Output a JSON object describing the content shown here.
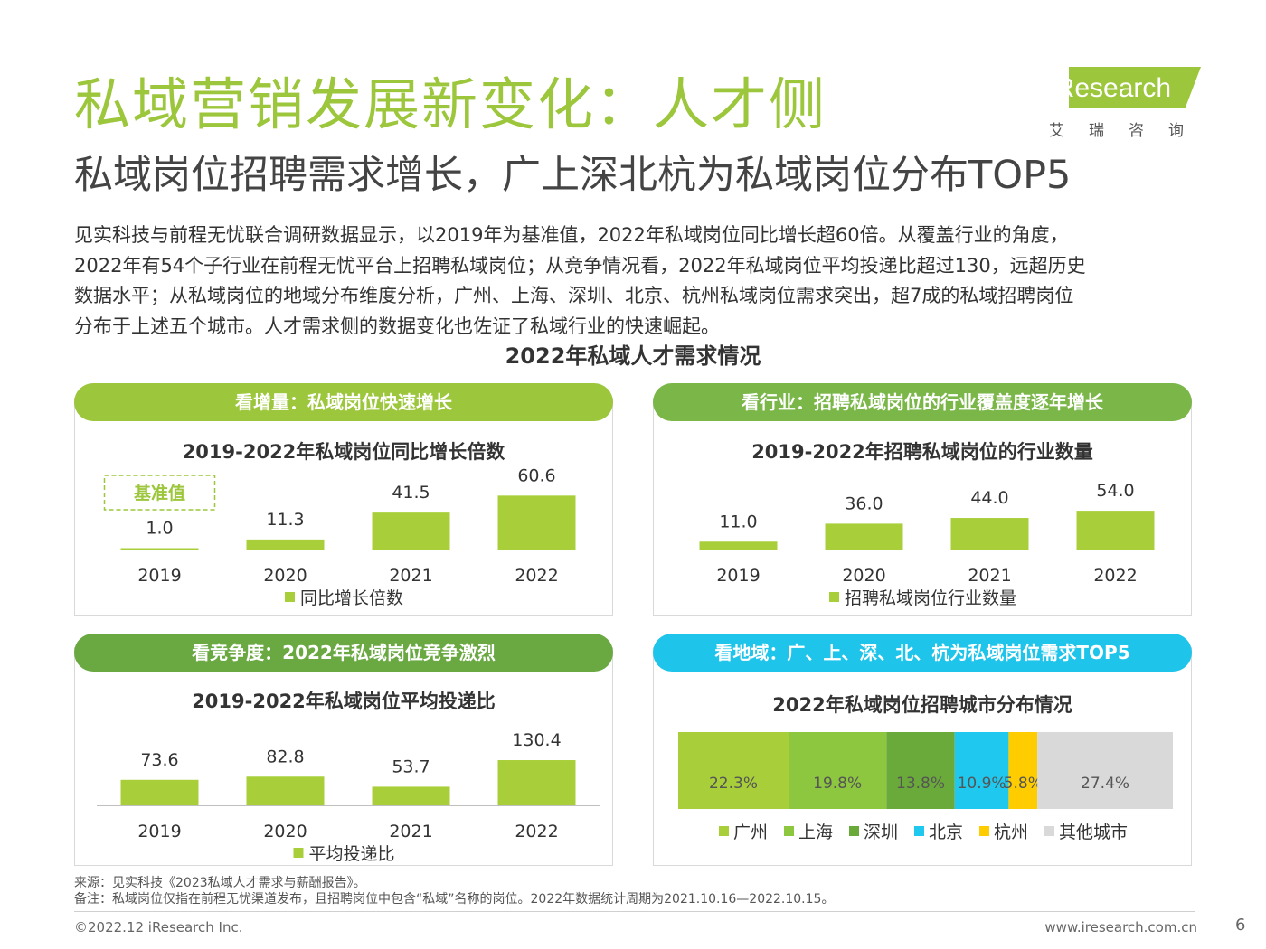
{
  "header": {
    "title": "私域营销发展新变化：人才侧",
    "subtitle": "私域岗位招聘需求增长，广上深北杭为私域岗位分布TOP5",
    "logo_text": "iResearch",
    "logo_subtext": "艾瑞咨询"
  },
  "paragraph": [
    "见实科技与前程无忧联合调研数据显示，以2019年为基准值，2022年私域岗位同比增长超60倍。从覆盖行业的角度，",
    "2022年有54个子行业在前程无忧平台上招聘私域岗位；从竞争情况看，2022年私域岗位平均投递比超过130，远超历史",
    "数据水平；从私域岗位的地域分布维度分析，广州、上海、深圳、北京、杭州私域岗位需求突出，超7成的私域招聘岗位",
    "分布于上述五个城市。人才需求侧的数据变化也佐证了私域行业的快速崛起。"
  ],
  "main_chart_title": "2022年私域人才需求情况",
  "panels": {
    "p1": {
      "pill": "看增量：私域岗位快速增长",
      "pill_color": "#9cc63b"
    },
    "p2": {
      "pill": "看行业：招聘私域岗位的行业覆盖度逐年增长",
      "pill_color": "#7ab648"
    },
    "p3": {
      "pill": "看竞争度：2022年私域岗位竞争激烈",
      "pill_color": "#6aa842"
    },
    "p4": {
      "pill": "看地域：广、上、深、北、杭为私域岗位需求TOP5",
      "pill_color": "#1ec4ea"
    }
  },
  "chart_data": [
    {
      "type": "bar",
      "title": "2019-2022年私域岗位同比增长倍数",
      "categories": [
        "2019",
        "2020",
        "2021",
        "2022"
      ],
      "series": [
        {
          "name": "同比增长倍数",
          "values": [
            1.0,
            11.3,
            41.5,
            60.6
          ]
        }
      ],
      "value_labels": [
        "1.0",
        "11.3",
        "41.5",
        "60.6"
      ],
      "annotation": "基准值",
      "ylim": [
        0,
        65
      ],
      "color": "#a8cf3a"
    },
    {
      "type": "bar",
      "title": "2019-2022年招聘私域岗位的行业数量",
      "categories": [
        "2019",
        "2020",
        "2021",
        "2022"
      ],
      "series": [
        {
          "name": "招聘私域岗位行业数量",
          "values": [
            11.0,
            36.0,
            44.0,
            54.0
          ]
        }
      ],
      "value_labels": [
        "11.0",
        "36.0",
        "44.0",
        "54.0"
      ],
      "ylim": [
        0,
        73
      ],
      "color": "#a8cf3a"
    },
    {
      "type": "bar",
      "title": "2019-2022年私域岗位平均投递比",
      "categories": [
        "2019",
        "2020",
        "2021",
        "2022"
      ],
      "series": [
        {
          "name": "平均投递比",
          "values": [
            73.6,
            82.8,
            53.7,
            130.4
          ]
        }
      ],
      "value_labels": [
        "73.6",
        "82.8",
        "53.7",
        "130.4"
      ],
      "ylim": [
        0,
        180
      ],
      "color": "#a8cf3a"
    },
    {
      "type": "bar",
      "stacked": "horizontal-100",
      "title": "2022年私域岗位招聘城市分布情况",
      "categories": [
        "广州",
        "上海",
        "深圳",
        "北京",
        "杭州",
        "其他城市"
      ],
      "values": [
        22.3,
        19.8,
        13.8,
        10.9,
        5.8,
        27.4
      ],
      "value_labels": [
        "22.3%",
        "19.8%",
        "13.8%",
        "10.9%",
        "5.8%",
        "27.4%"
      ],
      "colors": [
        "#a8cf3a",
        "#8dc63f",
        "#6aaa3a",
        "#1ec8ee",
        "#ffcc00",
        "#d9d9d9"
      ]
    }
  ],
  "footer": {
    "source": "来源：见实科技《2023私域人才需求与薪酬报告》。",
    "note": "备注：私域岗位仅指在前程无忧渠道发布，且招聘岗位中包含“私域”名称的岗位。2022年数据统计周期为2021.10.16—2022.10.15。",
    "copyright": "©2022.12 iResearch Inc.",
    "site": "www.iresearch.com.cn",
    "page": "6"
  }
}
